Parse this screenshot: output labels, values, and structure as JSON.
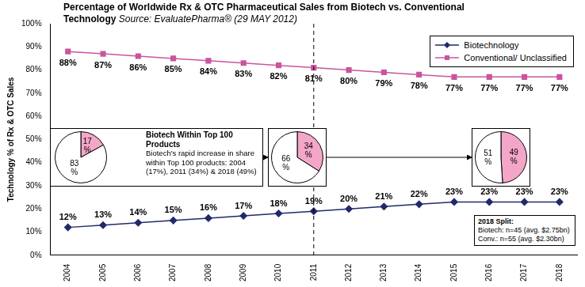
{
  "chart_data": [
    {
      "type": "line",
      "title": "Percentage of Worldwide Rx & OTC Pharmaceutical Sales from Biotech vs. Conventional Technology",
      "subtitle": "Source: EvaluatePharma® (29 MAY 2012)",
      "y_label": "Technology % of Rx & OTC Sales",
      "categories": [
        "2004",
        "2005",
        "2006",
        "2007",
        "2008",
        "2009",
        "2010",
        "2011",
        "2012",
        "2013",
        "2014",
        "2015",
        "2016",
        "2017",
        "2018"
      ],
      "series": [
        {
          "name": "Biotechnology",
          "color": "#1f2a6b",
          "marker": "diamond",
          "line_style": "solid",
          "values": [
            12,
            13,
            14,
            15,
            16,
            17,
            18,
            19,
            20,
            21,
            22,
            23,
            23,
            23,
            23
          ],
          "value_labels": [
            "12%",
            "13%",
            "14%",
            "15%",
            "16%",
            "17%",
            "18%",
            "19%",
            "20%",
            "21%",
            "22%",
            "23%",
            "23%",
            "23%",
            "23%"
          ]
        },
        {
          "name": "Conventional/ Unclassified",
          "color": "#c8559e",
          "marker": "square",
          "line_style": "solid",
          "values": [
            88,
            87,
            86,
            85,
            84,
            83,
            82,
            81,
            80,
            79,
            78,
            77,
            77,
            77,
            77
          ],
          "value_labels": [
            "88%",
            "87%",
            "86%",
            "85%",
            "84%",
            "83%",
            "82%",
            "81%",
            "80%",
            "79%",
            "78%",
            "77%",
            "77%",
            "77%",
            "77%"
          ]
        }
      ],
      "ylim": [
        0,
        100
      ],
      "yticks": [
        {
          "value": 0,
          "label": "0%"
        },
        {
          "value": 10,
          "label": "10%"
        },
        {
          "value": 20,
          "label": "20%"
        },
        {
          "value": 30,
          "label": "30%"
        },
        {
          "value": 40,
          "label": "40%"
        },
        {
          "value": 50,
          "label": "50%"
        },
        {
          "value": 60,
          "label": "60%"
        },
        {
          "value": 70,
          "label": "70%"
        },
        {
          "value": 80,
          "label": "80%"
        },
        {
          "value": 90,
          "label": "90%"
        },
        {
          "value": 100,
          "label": "100%"
        }
      ],
      "grid": false,
      "legend": "top right",
      "data_labels": true,
      "reference_line": {
        "x": "2011",
        "line_style": "dashed"
      },
      "annotations": [
        {
          "title": "Biotech Within Top 100 Products",
          "lines": [
            "Biotech's rapid increase in share within Top 100 products: 2004 (17%), 2011 (34%) & 2018 (49%)"
          ]
        },
        {
          "title": "2018 Split:",
          "lines": [
            "Biotech: n=45 (avg. $2.75bn)",
            "Conv.: n=55 (avg. $2.30bn)"
          ]
        }
      ]
    },
    {
      "type": "pie",
      "values": [
        17,
        83
      ],
      "value_labels": [
        "17 %",
        "83 %"
      ],
      "colors": [
        "#f4a6c9",
        "#ffffff"
      ],
      "data_labels": true
    },
    {
      "type": "pie",
      "values": [
        34,
        66
      ],
      "value_labels": [
        "34 %",
        "66 %"
      ],
      "colors": [
        "#f4a6c9",
        "#ffffff"
      ],
      "data_labels": true
    },
    {
      "type": "pie",
      "values": [
        49,
        51
      ],
      "value_labels": [
        "49 %",
        "51 %"
      ],
      "colors": [
        "#f4a6c9",
        "#ffffff"
      ],
      "data_labels": true
    }
  ]
}
